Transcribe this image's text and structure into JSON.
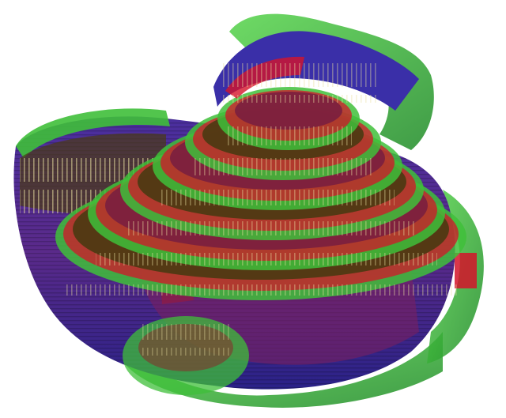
{
  "image": {
    "subject": "",
    "background_color": "#ffffff",
    "colors": {
      "outer_surface": "#3fbf3a",
      "outer_surface_dark": "#1f7a22",
      "inner_volume": "#3a2fa8",
      "inner_volume_dark": "#221a6e",
      "mid_layer": "#7a1f3f",
      "hot_layer": "#d4142a",
      "terrace_shadow": "#4a3a12",
      "highlight": "#e8e0a0"
    },
    "terrace_count": 6
  }
}
